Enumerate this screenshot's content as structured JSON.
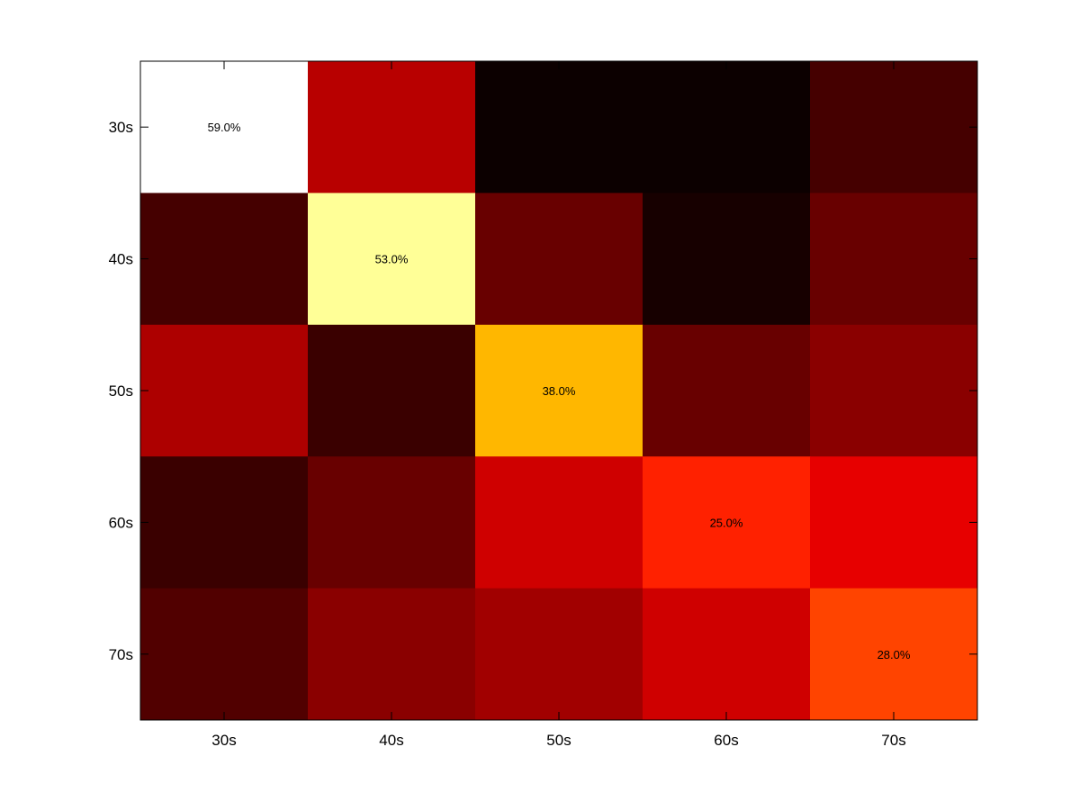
{
  "chart_data": {
    "type": "heatmap",
    "title": "",
    "xlabel": "",
    "ylabel": "",
    "x_categories": [
      "30s",
      "40s",
      "50s",
      "60s",
      "70s"
    ],
    "y_categories": [
      "30s",
      "40s",
      "50s",
      "60s",
      "70s"
    ],
    "colormap": "hot",
    "color_range": [
      0,
      59
    ],
    "grid": false,
    "legend": "none",
    "values": [
      [
        59,
        16,
        1,
        1,
        6
      ],
      [
        6,
        53,
        9,
        2,
        9
      ],
      [
        15,
        5,
        38,
        9,
        12
      ],
      [
        5,
        9,
        18,
        25,
        20
      ],
      [
        7,
        12,
        14,
        18,
        28
      ]
    ],
    "annotations": [
      {
        "row": 0,
        "col": 0,
        "text": "59.0%"
      },
      {
        "row": 1,
        "col": 1,
        "text": "53.0%"
      },
      {
        "row": 2,
        "col": 2,
        "text": "38.0%"
      },
      {
        "row": 3,
        "col": 3,
        "text": "25.0%"
      },
      {
        "row": 4,
        "col": 4,
        "text": "28.0%"
      }
    ]
  }
}
